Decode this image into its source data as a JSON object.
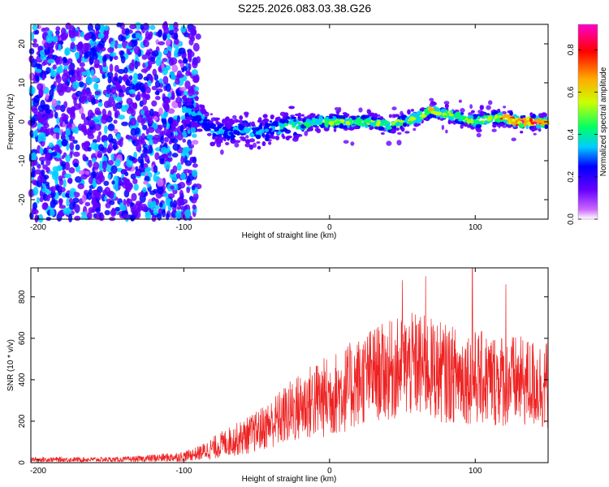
{
  "title": "S225.2026.083.03.38.G26",
  "chart_data": [
    {
      "type": "heatmap",
      "xlabel": "Height of straight line (km)",
      "ylabel": "Frequency (Hz)",
      "xlim": [
        -205,
        150
      ],
      "ylim": [
        -25,
        25
      ],
      "x_ticks": [
        -200,
        -100,
        0,
        100
      ],
      "y_ticks": [
        -20,
        -10,
        0,
        10,
        20
      ],
      "x_tick_labels": [
        "-200",
        "-100",
        "0",
        "100"
      ],
      "y_tick_labels": [
        "-20",
        "-10",
        "0",
        "10",
        "20"
      ],
      "colorbar": {
        "label": "Normalized spectral amplitude",
        "range": [
          0,
          0.92
        ],
        "ticks": [
          0.0,
          0.2,
          0.4,
          0.6,
          0.8
        ],
        "tick_labels": [
          "0.0",
          "0.2",
          "0.4",
          "0.6",
          "0.8"
        ],
        "colormap": [
          "#ffffff",
          "#cc66ff",
          "#6600ff",
          "#0000ff",
          "#00ccff",
          "#00ff66",
          "#ccff00",
          "#ffaa00",
          "#ff0000",
          "#ff00cc"
        ]
      },
      "signal_trace": {
        "x": [
          -100,
          -90,
          -80,
          -70,
          -60,
          -50,
          -40,
          -30,
          -20,
          -10,
          0,
          10,
          20,
          30,
          40,
          50,
          60,
          70,
          80,
          90,
          100,
          110,
          120,
          130,
          140,
          150
        ],
        "frequency": [
          3,
          2,
          -2,
          -3,
          -2,
          -3,
          -2,
          -1,
          -1,
          0,
          0,
          0,
          0,
          0,
          -1,
          0,
          1,
          3,
          2,
          1,
          0,
          1,
          1,
          0,
          0,
          0
        ],
        "peak_amplitude": [
          0.35,
          0.35,
          0.3,
          0.3,
          0.3,
          0.35,
          0.35,
          0.4,
          0.45,
          0.5,
          0.6,
          0.55,
          0.5,
          0.55,
          0.5,
          0.55,
          0.6,
          0.6,
          0.55,
          0.55,
          0.6,
          0.6,
          0.75,
          0.9,
          0.85,
          0.7
        ]
      }
    },
    {
      "type": "line",
      "xlabel": "Height of straight line (km)",
      "ylabel": "SNR (10 * v/v)",
      "xlim": [
        -205,
        150
      ],
      "ylim": [
        0,
        940
      ],
      "x_ticks": [
        -200,
        -100,
        0,
        100
      ],
      "y_ticks": [
        0,
        200,
        400,
        600,
        800
      ],
      "x_tick_labels": [
        "-200",
        "-100",
        "0",
        "100"
      ],
      "y_tick_labels": [
        "0",
        "200",
        "400",
        "600",
        "800"
      ],
      "color": "#ee2222",
      "series": {
        "x": [
          -205,
          -190,
          -175,
          -160,
          -145,
          -130,
          -120,
          -110,
          -100,
          -90,
          -80,
          -70,
          -60,
          -50,
          -40,
          -30,
          -20,
          -10,
          0,
          10,
          20,
          30,
          40,
          50,
          60,
          70,
          80,
          90,
          100,
          110,
          120,
          130,
          140,
          150
        ],
        "mean": [
          15,
          15,
          15,
          15,
          15,
          18,
          22,
          25,
          30,
          45,
          70,
          100,
          120,
          150,
          190,
          230,
          270,
          300,
          320,
          350,
          390,
          430,
          440,
          460,
          470,
          450,
          430,
          420,
          410,
          400,
          400,
          390,
          380,
          370
        ],
        "spread": [
          12,
          12,
          12,
          12,
          12,
          15,
          20,
          22,
          25,
          35,
          55,
          70,
          85,
          100,
          120,
          150,
          170,
          190,
          200,
          210,
          220,
          230,
          240,
          250,
          260,
          250,
          240,
          230,
          230,
          230,
          230,
          220,
          220,
          220
        ],
        "peaks": [
          {
            "x": 50,
            "y": 880
          },
          {
            "x": 66,
            "y": 900
          },
          {
            "x": 98,
            "y": 940
          },
          {
            "x": 121,
            "y": 860
          }
        ]
      }
    }
  ]
}
